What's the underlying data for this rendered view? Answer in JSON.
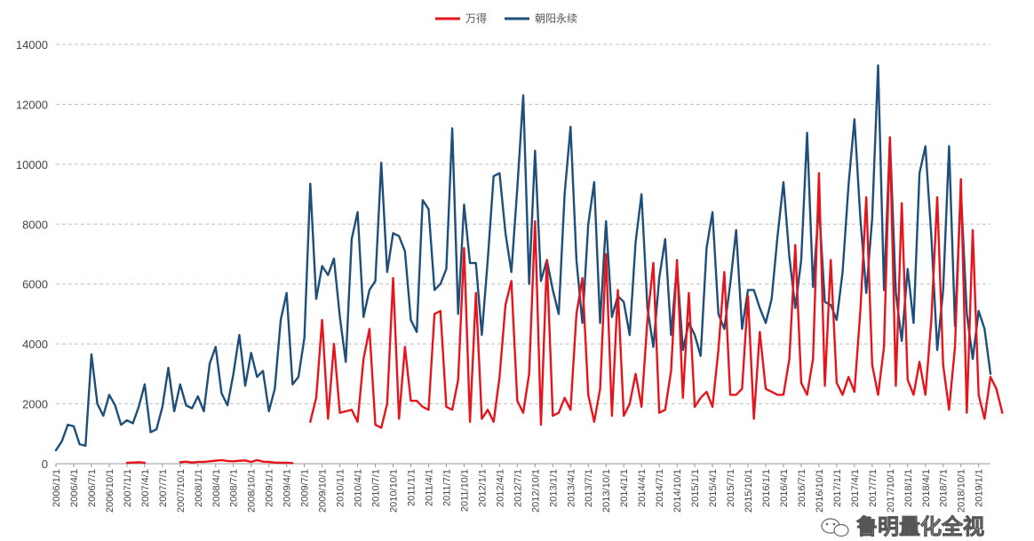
{
  "watermark": {
    "text": "鲁明量化全视",
    "icon": "wechat-bubble-icon"
  },
  "chart_data": {
    "type": "line",
    "title": "",
    "xlabel": "",
    "ylabel": "",
    "ylim": [
      0,
      14000
    ],
    "yticks": [
      0,
      2000,
      4000,
      6000,
      8000,
      10000,
      12000,
      14000
    ],
    "grid": true,
    "grid_style": "dashed",
    "legend_position": "top-center",
    "x_start": "2006/1/1",
    "x_interval": "monthly",
    "x_tick_labels": [
      "2006/1/1",
      "2006/4/1",
      "2006/7/1",
      "2006/10/1",
      "2007/1/1",
      "2007/4/1",
      "2007/7/1",
      "2007/10/1",
      "2008/1/1",
      "2008/4/1",
      "2008/7/1",
      "2008/10/1",
      "2009/1/1",
      "2009/4/1",
      "2009/7/1",
      "2009/10/1",
      "2010/1/1",
      "2010/4/1",
      "2010/7/1",
      "2010/10/1",
      "2011/1/1",
      "2011/4/1",
      "2011/7/1",
      "2011/10/1",
      "2012/1/1",
      "2012/4/1",
      "2012/7/1",
      "2012/10/1",
      "2013/1/1",
      "2013/4/1",
      "2013/7/1",
      "2013/10/1",
      "2014/1/1",
      "2014/4/1",
      "2014/7/1",
      "2014/10/1",
      "2015/1/1",
      "2015/4/1",
      "2015/7/1",
      "2015/10/1",
      "2016/1/1",
      "2016/4/1",
      "2016/7/1",
      "2016/10/1",
      "2017/1/1",
      "2017/4/1",
      "2017/7/1",
      "2017/10/1",
      "2018/1/1",
      "2018/4/1",
      "2018/7/1",
      "2018/10/1",
      "2019/1/1"
    ],
    "series": [
      {
        "name": "万得",
        "color": "#e8141b",
        "values": [
          null,
          null,
          null,
          null,
          null,
          null,
          null,
          null,
          null,
          null,
          null,
          null,
          30,
          40,
          50,
          30,
          null,
          null,
          null,
          null,
          null,
          50,
          70,
          40,
          60,
          60,
          80,
          100,
          120,
          90,
          80,
          100,
          110,
          60,
          120,
          70,
          60,
          40,
          30,
          30,
          20,
          null,
          null,
          1400,
          2200,
          4800,
          1500,
          4000,
          1700,
          1750,
          1800,
          1400,
          3500,
          4500,
          1300,
          1200,
          2000,
          6200,
          1500,
          3900,
          2100,
          2100,
          1900,
          1800,
          5000,
          5100,
          1900,
          1800,
          2800,
          7200,
          1400,
          5700,
          1500,
          1800,
          1400,
          2900,
          5300,
          6100,
          2100,
          1700,
          3000,
          8100,
          1300,
          6800,
          1600,
          1700,
          2200,
          1800,
          5000,
          6200,
          2300,
          1400,
          2500,
          7000,
          1600,
          5800,
          1600,
          2000,
          3000,
          1900,
          4800,
          6700,
          1700,
          1800,
          3100,
          6800,
          2200,
          5700,
          1900,
          2200,
          2400,
          1900,
          3800,
          6400,
          2300,
          2300,
          2500,
          5600,
          1500,
          4400,
          2500,
          2400,
          2300,
          2300,
          3500,
          7300,
          2700,
          2300,
          3500,
          9700,
          2600,
          6800,
          2700,
          2300,
          2900,
          2400,
          5100,
          8900,
          3300,
          2300,
          3900,
          10900,
          2600,
          8700,
          2800,
          2300,
          3400,
          2300,
          4800,
          8900,
          3300,
          1800,
          3900,
          9500,
          1700,
          7800,
          2300,
          1500,
          2900,
          2500,
          1700
        ]
      },
      {
        "name": "朝阳永续",
        "color": "#1e4f7a",
        "values": [
          450,
          750,
          1300,
          1250,
          650,
          600,
          3650,
          2000,
          1600,
          2300,
          1950,
          1300,
          1450,
          1350,
          1900,
          2650,
          1050,
          1150,
          1900,
          3200,
          1750,
          2650,
          1950,
          1850,
          2250,
          1750,
          3350,
          3900,
          2350,
          1950,
          3000,
          4300,
          2600,
          3700,
          2900,
          3100,
          1750,
          2500,
          4800,
          5700,
          2650,
          2900,
          4200,
          9350,
          5500,
          6600,
          6300,
          6850,
          4900,
          3400,
          7500,
          8400,
          4900,
          5800,
          6100,
          10050,
          6400,
          7700,
          7600,
          7100,
          4800,
          4400,
          8800,
          8500,
          5800,
          6000,
          6500,
          11200,
          5000,
          8650,
          6700,
          6700,
          4300,
          6800,
          9600,
          9700,
          7700,
          6400,
          9200,
          12300,
          6000,
          10450,
          6100,
          6800,
          5800,
          5000,
          9000,
          11250,
          6800,
          4700,
          8000,
          9400,
          4700,
          8100,
          4900,
          5600,
          5400,
          4300,
          7400,
          9000,
          5200,
          3900,
          6200,
          7500,
          4300,
          6600,
          3800,
          4700,
          4300,
          3600,
          7200,
          8400,
          5000,
          4500,
          6000,
          7800,
          4500,
          5800,
          5800,
          5200,
          4700,
          5500,
          7600,
          9400,
          6900,
          5200,
          6800,
          11050,
          5900,
          8600,
          5400,
          5300,
          4800,
          6400,
          9300,
          11500,
          8200,
          5700,
          8200,
          13300,
          5800,
          10850,
          5700,
          4100,
          6500,
          4700,
          9700,
          10600,
          7600,
          3800,
          5800,
          10600,
          4600,
          9100,
          5000,
          3500,
          5100,
          4500,
          3000
        ]
      }
    ]
  }
}
